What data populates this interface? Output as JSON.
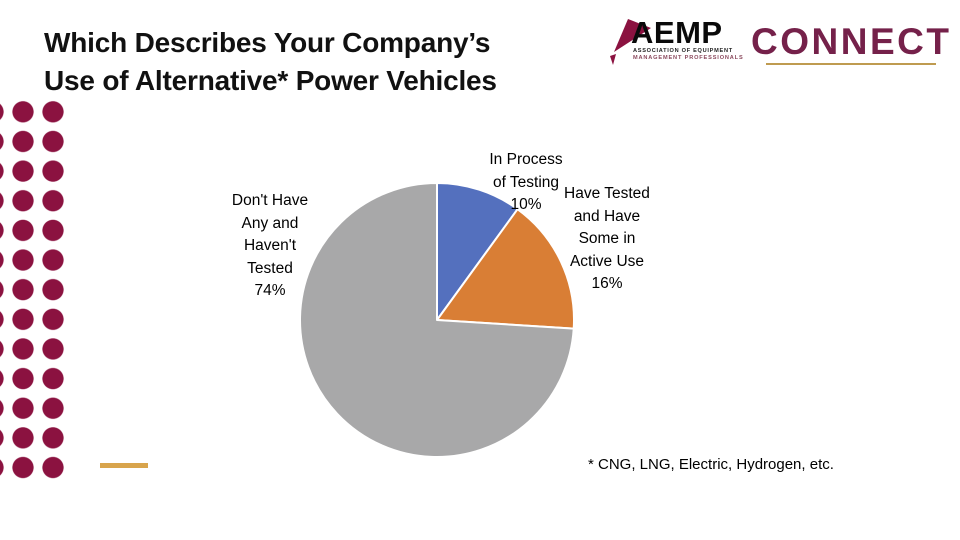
{
  "slide": {
    "title_lines": [
      "Which Describes Your Company’s",
      "Use of Alternative* Power Vehicles"
    ],
    "footnote": "* CNG, LNG, Electric, Hydrogen, etc."
  },
  "logo": {
    "aemp_text": "AEMP",
    "tagline_line1": "ASSOCIATION OF EQUIPMENT",
    "tagline_line2": "MANAGEMENT PROFESSIONALS",
    "connect_text": "CONNECT",
    "colors": {
      "maroon": "#8B1240",
      "connect_maroon": "#75214A",
      "gold_underline": "#BF9B50"
    }
  },
  "decor": {
    "dot_color": "#8B1240",
    "gold_dash_color": "#D8A44C"
  },
  "chart_data": {
    "type": "pie",
    "title": "Which Describes Your Company’s Use of Alternative* Power Vehicles",
    "slices": [
      {
        "label": "In Process of Testing",
        "value": 10,
        "percent_label": "10%",
        "color": "#5470BE",
        "label_lines": [
          "In Process",
          "of Testing",
          "10%"
        ]
      },
      {
        "label": "Have Tested and Have Some in Active Use",
        "value": 16,
        "percent_label": "16%",
        "color": "#D97E35",
        "label_lines": [
          "Have Tested",
          "and Have",
          "Some in",
          "Active Use",
          "16%"
        ]
      },
      {
        "label": "Don't Have Any and Haven't Tested",
        "value": 74,
        "percent_label": "74%",
        "color": "#A8A8A9",
        "label_lines": [
          "Don't Have",
          "Any and",
          "Haven't",
          "Tested",
          "74%"
        ]
      }
    ],
    "start_angle_deg": 0,
    "direction": "clockwise",
    "legend": "none",
    "data_labels": "outside",
    "annotation": "* CNG, LNG, Electric, Hydrogen, etc."
  }
}
